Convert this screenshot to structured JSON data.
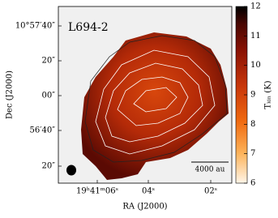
{
  "chart_data": {
    "type": "image",
    "title": "L694-2",
    "xlabel": "RA (J2000)",
    "ylabel": "Dec (J2000)",
    "xtick_labels": [
      "19ʰ41ᵐ06ˢ",
      "04ˢ",
      "02ˢ"
    ],
    "ytick_labels": [
      "10°57′40″",
      "20″",
      "00″",
      "56′40″",
      "20″"
    ],
    "scale_bar": "4000 au",
    "colorbar": {
      "label": "Tₖᵢₙ (K)",
      "lim": [
        6,
        12
      ],
      "ticks": [
        6,
        7,
        8,
        9,
        10,
        11,
        12
      ]
    }
  }
}
